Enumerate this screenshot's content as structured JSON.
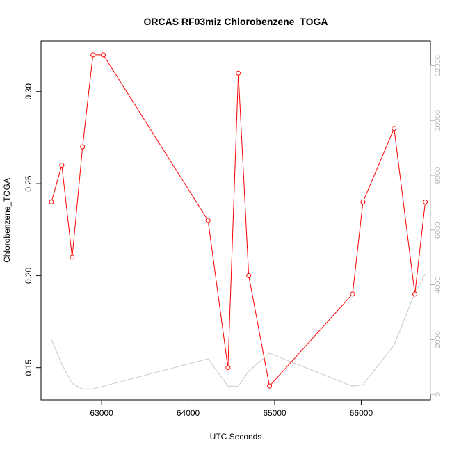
{
  "chart_data": {
    "type": "line",
    "title": "ORCAS RF03miz Chlorobenzene_TOGA",
    "xlabel": "UTC Seconds",
    "ylabel": "Chlorobenzene_TOGA",
    "xlim": [
      62300,
      66800
    ],
    "ylim": [
      0.1325,
      0.3275
    ],
    "y2lim": [
      -200,
      12900
    ],
    "x_ticks": [
      63000,
      64000,
      65000,
      66000
    ],
    "x_tick_labels": [
      "63000",
      "64000",
      "65000",
      "66000"
    ],
    "y_ticks": [
      0.15,
      0.2,
      0.25,
      0.3
    ],
    "y_tick_labels": [
      "0.15",
      "0.20",
      "0.25",
      "0.30"
    ],
    "y2_ticks": [
      0,
      2000,
      4000,
      6000,
      8000,
      10000,
      12000
    ],
    "y2_tick_labels": [
      "0",
      "2000",
      "4000",
      "6000",
      "8000",
      "10000",
      "12000"
    ],
    "grid": false,
    "colors": {
      "primary": "#ff0000",
      "secondary": "#c8c8c8",
      "right_axis": "#b3b3b3"
    },
    "series": [
      {
        "axis": "left",
        "style": "line-with-open-circles",
        "color": "#ff0000",
        "x": [
          62420,
          62540,
          62660,
          62780,
          62900,
          63020,
          64230,
          64460,
          64580,
          64700,
          64940,
          65900,
          66020,
          66380,
          66620,
          66740
        ],
        "y": [
          0.24,
          0.26,
          0.21,
          0.27,
          0.32,
          0.32,
          0.23,
          0.15,
          0.31,
          0.2,
          0.14,
          0.19,
          0.24,
          0.28,
          0.19,
          0.24
        ]
      },
      {
        "axis": "right",
        "style": "line",
        "color": "#c8c8c8",
        "x": [
          62420,
          62540,
          62660,
          62780,
          62900,
          63020,
          64230,
          64460,
          64580,
          64700,
          64940,
          65900,
          66020,
          66380,
          66620,
          66740
        ],
        "y": [
          2000,
          1100,
          400,
          200,
          200,
          300,
          1300,
          300,
          300,
          850,
          1500,
          300,
          350,
          1800,
          3700,
          4400
        ]
      }
    ]
  }
}
